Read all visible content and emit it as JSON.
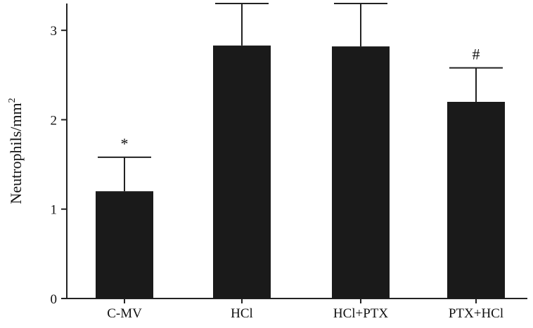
{
  "chart_data": {
    "type": "bar",
    "categories": [
      "C-MV",
      "HCl",
      "HCl+PTX",
      "PTX+HCl"
    ],
    "values": [
      1.2,
      2.83,
      2.82,
      2.2
    ],
    "error_upper": [
      1.58,
      3.3,
      3.3,
      2.58
    ],
    "annotations": [
      "*",
      "",
      "",
      "#"
    ],
    "ylabel_main": "Neutrophils/mm",
    "ylabel_sup": "2",
    "ylim": [
      0,
      3.3
    ],
    "yticks": [
      0,
      1,
      2,
      3
    ],
    "grid": false,
    "legend": "none",
    "bar_color": "#1a1a1a"
  }
}
